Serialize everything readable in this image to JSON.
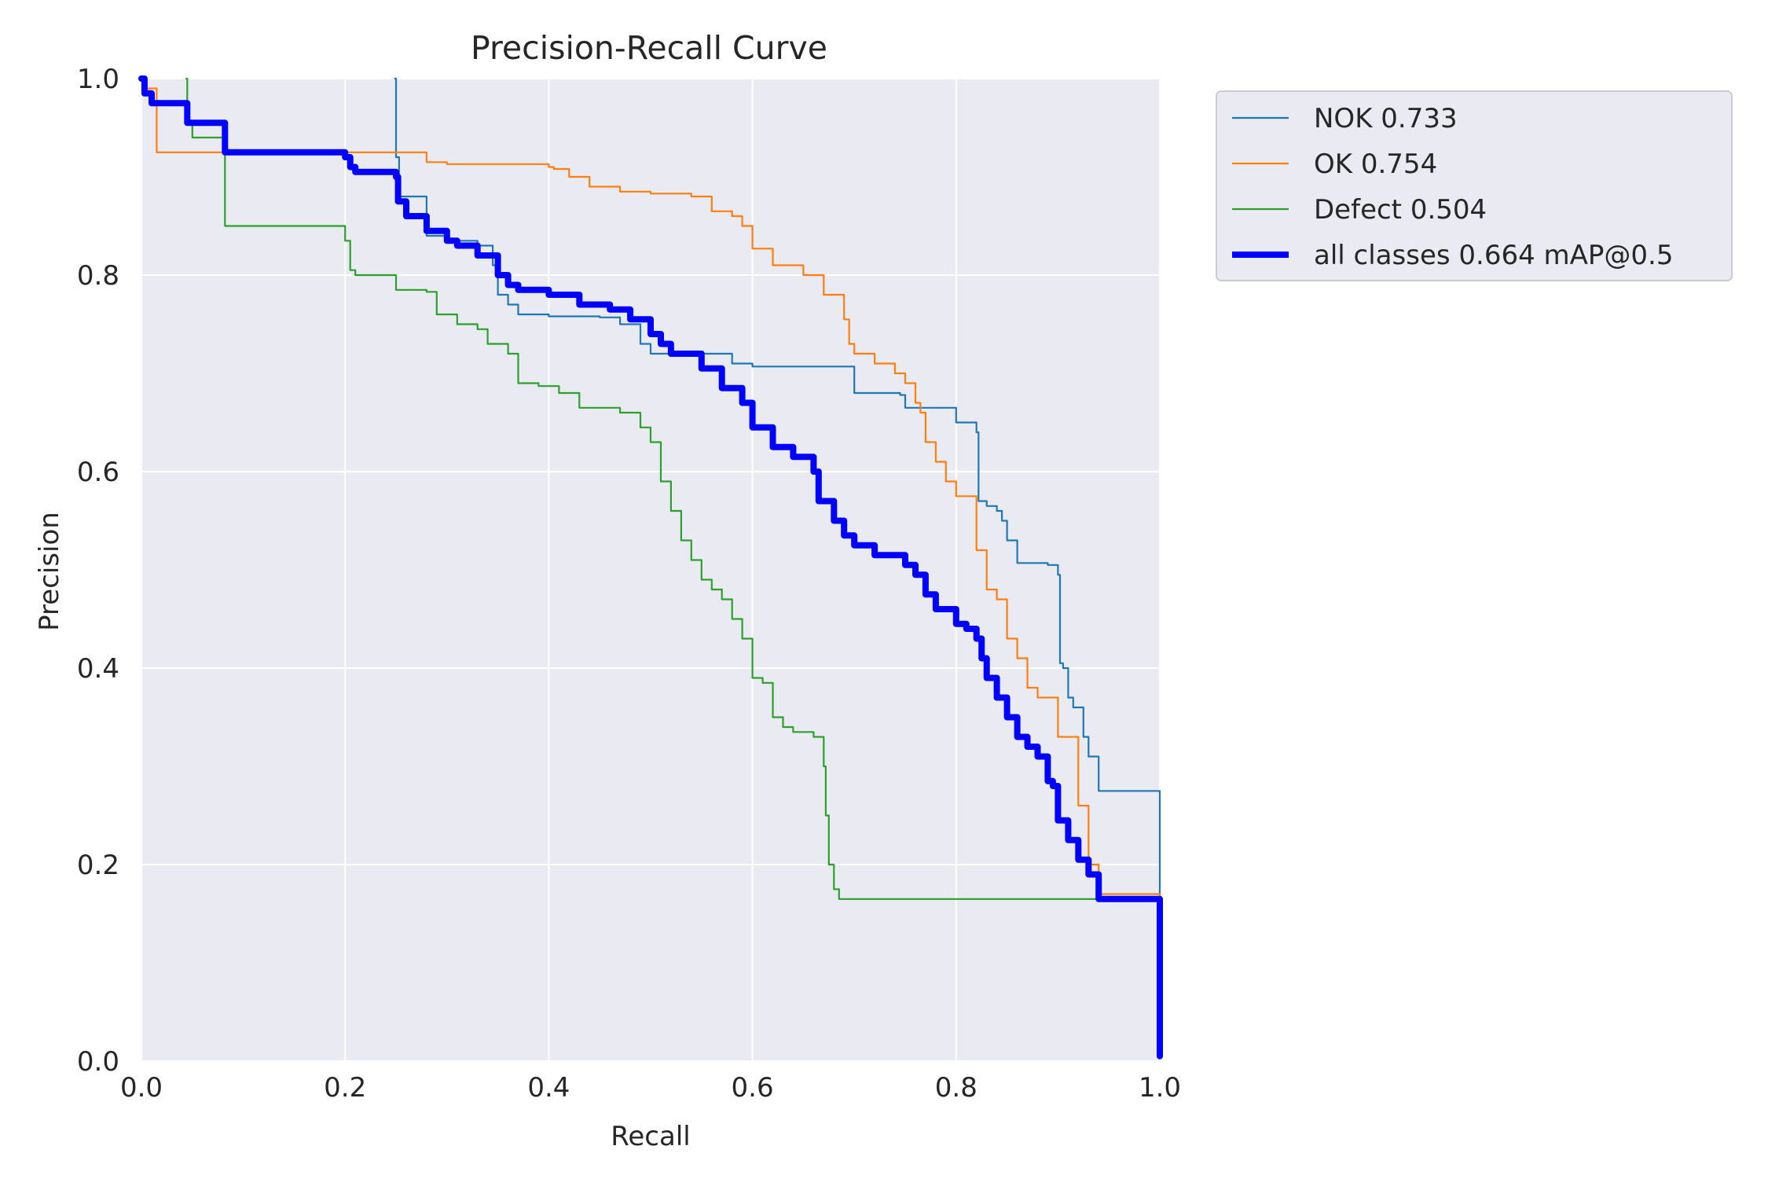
{
  "chart_data": {
    "type": "line",
    "title": "Precision-Recall Curve",
    "xlabel": "Recall",
    "ylabel": "Precision",
    "xlim": [
      0,
      1
    ],
    "ylim": [
      0,
      1
    ],
    "xticks": [
      "0.0",
      "0.2",
      "0.4",
      "0.6",
      "0.8",
      "1.0"
    ],
    "yticks": [
      "0.0",
      "0.2",
      "0.4",
      "0.6",
      "0.8",
      "1.0"
    ],
    "grid": true,
    "legend_position": "outside-top-right",
    "series": [
      {
        "name": "NOK 0.733",
        "color": "#1f77b4",
        "width": "thin",
        "x": [
          0.249,
          0.25,
          0.251,
          0.253,
          0.26,
          0.27,
          0.28,
          0.3,
          0.33,
          0.345,
          0.35,
          0.36,
          0.37,
          0.4,
          0.45,
          0.47,
          0.49,
          0.5,
          0.55,
          0.58,
          0.6,
          0.65,
          0.699,
          0.7,
          0.745,
          0.75,
          0.78,
          0.8,
          0.81,
          0.82,
          0.822,
          0.83,
          0.84,
          0.845,
          0.85,
          0.86,
          0.87,
          0.89,
          0.9,
          0.902,
          0.905,
          0.91,
          0.915,
          0.92,
          0.925,
          0.93,
          0.935,
          0.94,
          1.0
        ],
        "y": [
          1.0,
          0.92,
          0.92,
          0.88,
          0.88,
          0.88,
          0.84,
          0.835,
          0.83,
          0.81,
          0.78,
          0.77,
          0.76,
          0.758,
          0.757,
          0.75,
          0.73,
          0.72,
          0.72,
          0.71,
          0.707,
          0.707,
          0.707,
          0.68,
          0.678,
          0.665,
          0.665,
          0.65,
          0.65,
          0.64,
          0.57,
          0.565,
          0.56,
          0.55,
          0.53,
          0.507,
          0.507,
          0.505,
          0.495,
          0.405,
          0.4,
          0.37,
          0.36,
          0.36,
          0.33,
          0.31,
          0.31,
          0.275,
          0.005
        ]
      },
      {
        "name": "OK 0.754",
        "color": "#ff7f0e",
        "width": "thin",
        "x": [
          0.0,
          0.003,
          0.015,
          0.1,
          0.25,
          0.28,
          0.3,
          0.4,
          0.405,
          0.42,
          0.44,
          0.47,
          0.5,
          0.54,
          0.56,
          0.58,
          0.59,
          0.6,
          0.62,
          0.65,
          0.67,
          0.69,
          0.695,
          0.7,
          0.72,
          0.74,
          0.75,
          0.76,
          0.765,
          0.77,
          0.78,
          0.79,
          0.8,
          0.82,
          0.83,
          0.84,
          0.85,
          0.86,
          0.87,
          0.88,
          0.9,
          0.92,
          0.93,
          0.94,
          1.0
        ],
        "y": [
          1.0,
          0.99,
          0.925,
          0.925,
          0.925,
          0.915,
          0.913,
          0.91,
          0.908,
          0.9,
          0.89,
          0.885,
          0.883,
          0.88,
          0.865,
          0.86,
          0.85,
          0.827,
          0.81,
          0.8,
          0.78,
          0.755,
          0.73,
          0.72,
          0.71,
          0.7,
          0.69,
          0.67,
          0.66,
          0.63,
          0.61,
          0.59,
          0.575,
          0.52,
          0.48,
          0.47,
          0.43,
          0.41,
          0.38,
          0.37,
          0.33,
          0.26,
          0.2,
          0.17,
          0.005
        ]
      },
      {
        "name": "Defect 0.504",
        "color": "#2ca02c",
        "width": "thin",
        "x": [
          0.044,
          0.045,
          0.05,
          0.08,
          0.082,
          0.17,
          0.2,
          0.205,
          0.21,
          0.25,
          0.28,
          0.29,
          0.31,
          0.33,
          0.34,
          0.36,
          0.37,
          0.39,
          0.41,
          0.43,
          0.47,
          0.49,
          0.5,
          0.51,
          0.52,
          0.53,
          0.54,
          0.55,
          0.56,
          0.57,
          0.58,
          0.59,
          0.6,
          0.61,
          0.62,
          0.63,
          0.64,
          0.66,
          0.67,
          0.672,
          0.675,
          0.68,
          0.685,
          1.0
        ],
        "y": [
          1.0,
          0.955,
          0.94,
          0.925,
          0.85,
          0.85,
          0.835,
          0.805,
          0.8,
          0.785,
          0.783,
          0.76,
          0.75,
          0.745,
          0.73,
          0.72,
          0.69,
          0.687,
          0.68,
          0.665,
          0.66,
          0.645,
          0.63,
          0.59,
          0.56,
          0.53,
          0.51,
          0.49,
          0.48,
          0.47,
          0.45,
          0.43,
          0.39,
          0.385,
          0.35,
          0.34,
          0.335,
          0.33,
          0.3,
          0.25,
          0.2,
          0.175,
          0.165,
          0.003
        ]
      },
      {
        "name": "all classes 0.664 mAP@0.5",
        "color": "#0000ff",
        "width": "thick",
        "x": [
          0.0,
          0.003,
          0.01,
          0.012,
          0.04,
          0.045,
          0.08,
          0.082,
          0.14,
          0.2,
          0.205,
          0.21,
          0.25,
          0.252,
          0.26,
          0.28,
          0.3,
          0.31,
          0.33,
          0.35,
          0.36,
          0.37,
          0.38,
          0.4,
          0.43,
          0.46,
          0.48,
          0.5,
          0.51,
          0.52,
          0.55,
          0.57,
          0.59,
          0.6,
          0.62,
          0.64,
          0.66,
          0.665,
          0.68,
          0.69,
          0.7,
          0.72,
          0.75,
          0.76,
          0.77,
          0.78,
          0.8,
          0.81,
          0.82,
          0.825,
          0.83,
          0.84,
          0.85,
          0.86,
          0.87,
          0.88,
          0.89,
          0.895,
          0.9,
          0.91,
          0.92,
          0.93,
          0.94,
          1.0
        ],
        "y": [
          1.0,
          0.985,
          0.975,
          0.975,
          0.975,
          0.955,
          0.955,
          0.925,
          0.925,
          0.92,
          0.91,
          0.905,
          0.9,
          0.875,
          0.86,
          0.845,
          0.835,
          0.83,
          0.82,
          0.8,
          0.79,
          0.785,
          0.785,
          0.78,
          0.77,
          0.765,
          0.755,
          0.74,
          0.73,
          0.72,
          0.705,
          0.685,
          0.67,
          0.645,
          0.625,
          0.615,
          0.6,
          0.57,
          0.55,
          0.535,
          0.525,
          0.515,
          0.505,
          0.495,
          0.475,
          0.46,
          0.445,
          0.44,
          0.43,
          0.41,
          0.39,
          0.37,
          0.35,
          0.33,
          0.32,
          0.31,
          0.285,
          0.28,
          0.245,
          0.225,
          0.205,
          0.19,
          0.165,
          0.005
        ]
      }
    ]
  }
}
